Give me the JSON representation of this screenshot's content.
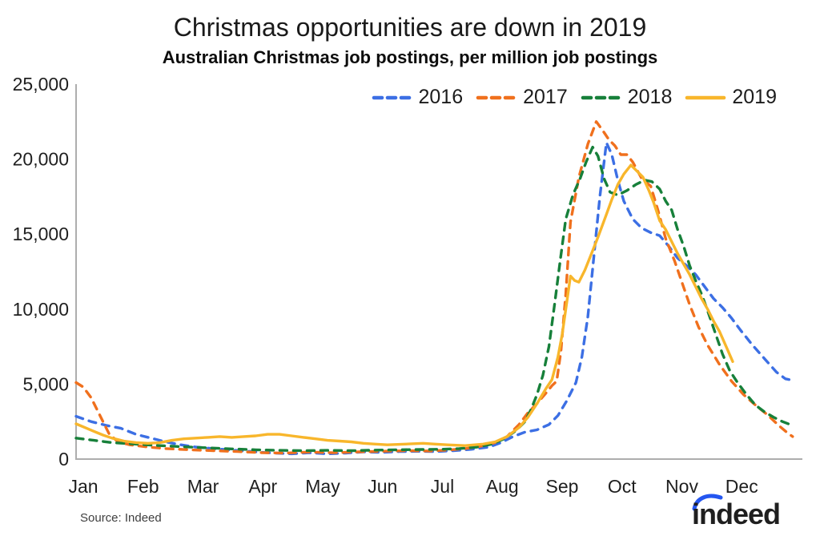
{
  "header": {
    "title": "Christmas opportunities are down in 2019",
    "subtitle": "Australian Christmas job postings, per million job postings"
  },
  "footer": {
    "source": "Source: Indeed",
    "logo_text": "indeed"
  },
  "colors": {
    "axis": "#adadad",
    "tick_text": "#1f1f1f",
    "logo_blue": "#2456f0",
    "series_2016": "#3c6fe4",
    "series_2017": "#f0701d",
    "series_2018": "#17803a",
    "series_2019": "#f8b62b"
  },
  "chart_data": {
    "type": "line",
    "title": "Christmas opportunities are down in 2019",
    "subtitle": "Australian Christmas job postings, per million job postings",
    "xlabel": "",
    "ylabel": "",
    "x_unit": "months, 0 = start of Jan, 12 = end of Dec",
    "month_labels": [
      "Jan",
      "Feb",
      "Mar",
      "Apr",
      "May",
      "Jun",
      "Jul",
      "Aug",
      "Sep",
      "Oct",
      "Nov",
      "Dec"
    ],
    "ylim": [
      0,
      25000
    ],
    "yticks": [
      0,
      5000,
      10000,
      15000,
      20000,
      25000
    ],
    "ytick_labels": [
      "0",
      "5,000",
      "10,000",
      "15,000",
      "20,000",
      "25,000"
    ],
    "grid": false,
    "legend_position": "top-right",
    "series": [
      {
        "name": "2016",
        "color": "#3c6fe4",
        "dashed": true,
        "points": [
          [
            0,
            2850
          ],
          [
            0.25,
            2500
          ],
          [
            0.5,
            2250
          ],
          [
            0.75,
            2050
          ],
          [
            1,
            1650
          ],
          [
            1.25,
            1400
          ],
          [
            1.5,
            1150
          ],
          [
            1.75,
            950
          ],
          [
            2,
            800
          ],
          [
            2.3,
            700
          ],
          [
            2.6,
            600
          ],
          [
            3,
            480
          ],
          [
            3.3,
            400
          ],
          [
            3.6,
            350
          ],
          [
            3.9,
            420
          ],
          [
            4.2,
            350
          ],
          [
            4.5,
            400
          ],
          [
            4.8,
            480
          ],
          [
            5.1,
            450
          ],
          [
            5.4,
            500
          ],
          [
            5.7,
            520
          ],
          [
            6,
            500
          ],
          [
            6.3,
            560
          ],
          [
            6.6,
            650
          ],
          [
            6.9,
            800
          ],
          [
            7.1,
            1100
          ],
          [
            7.3,
            1500
          ],
          [
            7.5,
            1800
          ],
          [
            7.7,
            1950
          ],
          [
            7.9,
            2300
          ],
          [
            8.05,
            2900
          ],
          [
            8.2,
            3900
          ],
          [
            8.35,
            5100
          ],
          [
            8.45,
            6800
          ],
          [
            8.55,
            9500
          ],
          [
            8.65,
            13500
          ],
          [
            8.75,
            17500
          ],
          [
            8.86,
            21100
          ],
          [
            8.95,
            20300
          ],
          [
            9.05,
            18600
          ],
          [
            9.15,
            17200
          ],
          [
            9.3,
            16000
          ],
          [
            9.45,
            15400
          ],
          [
            9.6,
            15100
          ],
          [
            9.75,
            14900
          ],
          [
            9.9,
            14200
          ],
          [
            10.05,
            13400
          ],
          [
            10.2,
            12900
          ],
          [
            10.35,
            12300
          ],
          [
            10.5,
            11500
          ],
          [
            10.65,
            10700
          ],
          [
            10.8,
            10100
          ],
          [
            10.95,
            9400
          ],
          [
            11.1,
            8600
          ],
          [
            11.3,
            7600
          ],
          [
            11.5,
            6700
          ],
          [
            11.7,
            5800
          ],
          [
            11.85,
            5350
          ],
          [
            11.97,
            5250
          ]
        ]
      },
      {
        "name": "2017",
        "color": "#f0701d",
        "dashed": true,
        "points": [
          [
            0,
            5100
          ],
          [
            0.12,
            4800
          ],
          [
            0.25,
            4100
          ],
          [
            0.4,
            2900
          ],
          [
            0.55,
            1700
          ],
          [
            0.7,
            1150
          ],
          [
            0.9,
            950
          ],
          [
            1.2,
            800
          ],
          [
            1.5,
            700
          ],
          [
            1.9,
            620
          ],
          [
            2.3,
            560
          ],
          [
            2.7,
            500
          ],
          [
            3.1,
            430
          ],
          [
            3.5,
            400
          ],
          [
            3.9,
            470
          ],
          [
            4.3,
            420
          ],
          [
            4.7,
            480
          ],
          [
            5.1,
            520
          ],
          [
            5.5,
            560
          ],
          [
            5.9,
            540
          ],
          [
            6.2,
            600
          ],
          [
            6.5,
            700
          ],
          [
            6.75,
            850
          ],
          [
            7,
            1100
          ],
          [
            7.2,
            1500
          ],
          [
            7.4,
            2300
          ],
          [
            7.55,
            3100
          ],
          [
            7.7,
            3700
          ],
          [
            7.85,
            4400
          ],
          [
            7.95,
            4900
          ],
          [
            8.03,
            5200
          ],
          [
            8.1,
            7200
          ],
          [
            8.18,
            11000
          ],
          [
            8.26,
            15800
          ],
          [
            8.4,
            18800
          ],
          [
            8.55,
            21000
          ],
          [
            8.69,
            22500
          ],
          [
            8.8,
            21900
          ],
          [
            8.9,
            21300
          ],
          [
            9,
            20900
          ],
          [
            9.1,
            20300
          ],
          [
            9.2,
            20300
          ],
          [
            9.3,
            19800
          ],
          [
            9.45,
            18700
          ],
          [
            9.6,
            18200
          ],
          [
            9.72,
            16600
          ],
          [
            9.85,
            14700
          ],
          [
            10,
            13200
          ],
          [
            10.12,
            11800
          ],
          [
            10.25,
            10300
          ],
          [
            10.4,
            8800
          ],
          [
            10.55,
            7600
          ],
          [
            10.75,
            6300
          ],
          [
            10.95,
            5200
          ],
          [
            11.15,
            4300
          ],
          [
            11.35,
            3600
          ],
          [
            11.55,
            2950
          ],
          [
            11.75,
            2200
          ],
          [
            11.9,
            1700
          ],
          [
            11.97,
            1500
          ]
        ]
      },
      {
        "name": "2018",
        "color": "#17803a",
        "dashed": true,
        "points": [
          [
            0,
            1400
          ],
          [
            0.3,
            1250
          ],
          [
            0.6,
            1100
          ],
          [
            1,
            1000
          ],
          [
            1.4,
            900
          ],
          [
            1.8,
            820
          ],
          [
            2.2,
            750
          ],
          [
            2.6,
            680
          ],
          [
            3,
            620
          ],
          [
            3.4,
            580
          ],
          [
            3.8,
            560
          ],
          [
            4.2,
            580
          ],
          [
            4.6,
            560
          ],
          [
            5,
            600
          ],
          [
            5.4,
            620
          ],
          [
            5.8,
            640
          ],
          [
            6.1,
            650
          ],
          [
            6.4,
            700
          ],
          [
            6.7,
            800
          ],
          [
            6.95,
            1000
          ],
          [
            7.15,
            1350
          ],
          [
            7.35,
            1900
          ],
          [
            7.5,
            2500
          ],
          [
            7.6,
            3300
          ],
          [
            7.7,
            4300
          ],
          [
            7.8,
            5600
          ],
          [
            7.9,
            7500
          ],
          [
            8,
            10500
          ],
          [
            8.08,
            13000
          ],
          [
            8.18,
            16000
          ],
          [
            8.3,
            17600
          ],
          [
            8.42,
            18700
          ],
          [
            8.52,
            19800
          ],
          [
            8.63,
            20800
          ],
          [
            8.72,
            20200
          ],
          [
            8.82,
            18700
          ],
          [
            8.92,
            17800
          ],
          [
            9.05,
            17600
          ],
          [
            9.2,
            17900
          ],
          [
            9.35,
            18300
          ],
          [
            9.5,
            18600
          ],
          [
            9.62,
            18500
          ],
          [
            9.75,
            18000
          ],
          [
            9.85,
            17200
          ],
          [
            9.95,
            16600
          ],
          [
            10.05,
            15300
          ],
          [
            10.15,
            14200
          ],
          [
            10.25,
            12900
          ],
          [
            10.35,
            11900
          ],
          [
            10.45,
            11000
          ],
          [
            10.55,
            9900
          ],
          [
            10.68,
            8400
          ],
          [
            10.8,
            7000
          ],
          [
            10.92,
            5900
          ],
          [
            11.05,
            5100
          ],
          [
            11.2,
            4300
          ],
          [
            11.35,
            3600
          ],
          [
            11.5,
            3150
          ],
          [
            11.65,
            2800
          ],
          [
            11.8,
            2500
          ],
          [
            11.9,
            2350
          ],
          [
            11.97,
            2400
          ]
        ]
      },
      {
        "name": "2019",
        "color": "#f8b62b",
        "dashed": false,
        "points": [
          [
            0,
            2350
          ],
          [
            0.15,
            2100
          ],
          [
            0.3,
            1850
          ],
          [
            0.45,
            1600
          ],
          [
            0.6,
            1400
          ],
          [
            0.8,
            1200
          ],
          [
            1,
            1100
          ],
          [
            1.2,
            1050
          ],
          [
            1.4,
            1100
          ],
          [
            1.6,
            1250
          ],
          [
            1.8,
            1350
          ],
          [
            2,
            1400
          ],
          [
            2.2,
            1450
          ],
          [
            2.4,
            1500
          ],
          [
            2.6,
            1450
          ],
          [
            2.8,
            1500
          ],
          [
            3,
            1550
          ],
          [
            3.2,
            1650
          ],
          [
            3.4,
            1650
          ],
          [
            3.6,
            1550
          ],
          [
            3.8,
            1450
          ],
          [
            4,
            1350
          ],
          [
            4.2,
            1250
          ],
          [
            4.4,
            1200
          ],
          [
            4.6,
            1150
          ],
          [
            4.8,
            1050
          ],
          [
            5,
            1000
          ],
          [
            5.2,
            950
          ],
          [
            5.5,
            1000
          ],
          [
            5.8,
            1050
          ],
          [
            6,
            1000
          ],
          [
            6.2,
            950
          ],
          [
            6.5,
            900
          ],
          [
            6.8,
            1000
          ],
          [
            7,
            1150
          ],
          [
            7.2,
            1500
          ],
          [
            7.4,
            2100
          ],
          [
            7.55,
            2800
          ],
          [
            7.7,
            3700
          ],
          [
            7.85,
            4700
          ],
          [
            7.95,
            5300
          ],
          [
            8.05,
            6800
          ],
          [
            8.12,
            8300
          ],
          [
            8.2,
            10500
          ],
          [
            8.26,
            12200
          ],
          [
            8.33,
            11900
          ],
          [
            8.4,
            11800
          ],
          [
            8.5,
            12600
          ],
          [
            8.6,
            13600
          ],
          [
            8.72,
            14800
          ],
          [
            8.85,
            16200
          ],
          [
            8.95,
            17300
          ],
          [
            9.05,
            18300
          ],
          [
            9.15,
            19000
          ],
          [
            9.27,
            19600
          ],
          [
            9.37,
            19200
          ],
          [
            9.47,
            18800
          ],
          [
            9.57,
            17900
          ],
          [
            9.65,
            17100
          ],
          [
            9.75,
            15900
          ],
          [
            9.85,
            15300
          ],
          [
            9.95,
            14500
          ],
          [
            10.05,
            13700
          ],
          [
            10.15,
            13000
          ],
          [
            10.25,
            12300
          ],
          [
            10.35,
            11500
          ],
          [
            10.45,
            10700
          ],
          [
            10.55,
            10000
          ],
          [
            10.65,
            9200
          ],
          [
            10.75,
            8500
          ],
          [
            10.85,
            7600
          ],
          [
            10.97,
            6500
          ]
        ]
      }
    ]
  }
}
